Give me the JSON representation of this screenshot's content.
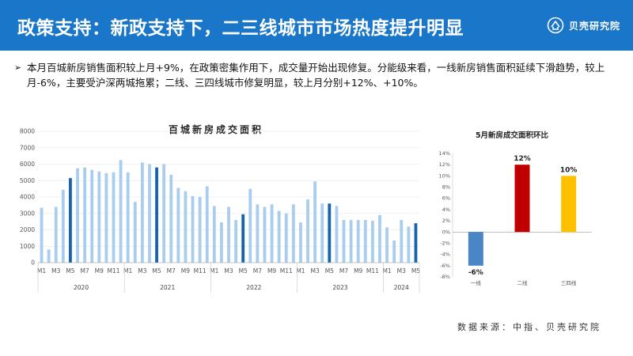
{
  "header": {
    "title": "政策支持：新政支持下，二三线城市市场热度提升明显",
    "brand": "贝壳研究院"
  },
  "summary": {
    "bullet": "➢",
    "text": "本月百城新房销售面积较上月+9%，在政策密集作用下，成交量开始出现修复。分能级来看，一线新房销售面积延续下滑趋势，较上月-6%，主要受沪深两城拖累；二线、三四线城市修复明显，较上月分别+12%、+10%。"
  },
  "source": "数据来源：中指、贝壳研究院",
  "colors": {
    "header": "#1976c8",
    "bar_light": "#a9cdee",
    "bar_dark": "#1564ad",
    "tier1": "#4a86c6",
    "tier2": "#c00000",
    "tier3": "#ffc000"
  },
  "chart_data": [
    {
      "type": "bar",
      "title": "百城新房成交面积",
      "ylim": [
        0,
        8000
      ],
      "yticks": [
        0,
        1000,
        2000,
        3000,
        4000,
        5000,
        6000,
        7000,
        8000
      ],
      "x_tick_labels": [
        "M1",
        "M3",
        "M5",
        "M7",
        "M9",
        "M11"
      ],
      "years": [
        {
          "year": "2020",
          "months": 12
        },
        {
          "year": "2021",
          "months": 12
        },
        {
          "year": "2022",
          "months": 12
        },
        {
          "year": "2023",
          "months": 12
        },
        {
          "year": "2024",
          "months": 5
        }
      ],
      "values": [
        3350,
        800,
        3400,
        4450,
        5150,
        5750,
        5800,
        5650,
        5550,
        5450,
        5500,
        6250,
        5500,
        3700,
        6100,
        6000,
        5800,
        6000,
        5350,
        4550,
        4350,
        4050,
        4000,
        4650,
        3450,
        2450,
        3400,
        2600,
        2950,
        4500,
        3550,
        3400,
        3550,
        3150,
        3000,
        3550,
        2450,
        3850,
        4950,
        3600,
        3600,
        3450,
        2600,
        2600,
        2600,
        2600,
        2550,
        2900,
        2150,
        1350,
        2600,
        2200,
        2400
      ],
      "highlight_months": [
        "2020-M5",
        "2021-M5",
        "2022-M5",
        "2023-M5",
        "2024-M5"
      ]
    },
    {
      "type": "bar",
      "title": "5月新房成交面积环比",
      "ylim": [
        -8,
        14
      ],
      "yticks": [
        -8,
        -6,
        -4,
        -2,
        0,
        2,
        4,
        6,
        8,
        10,
        12,
        14
      ],
      "categories": [
        "一线",
        "二线",
        "三四线"
      ],
      "values": [
        -6,
        12,
        10
      ],
      "labels": [
        "-6%",
        "12%",
        "10%"
      ]
    }
  ]
}
